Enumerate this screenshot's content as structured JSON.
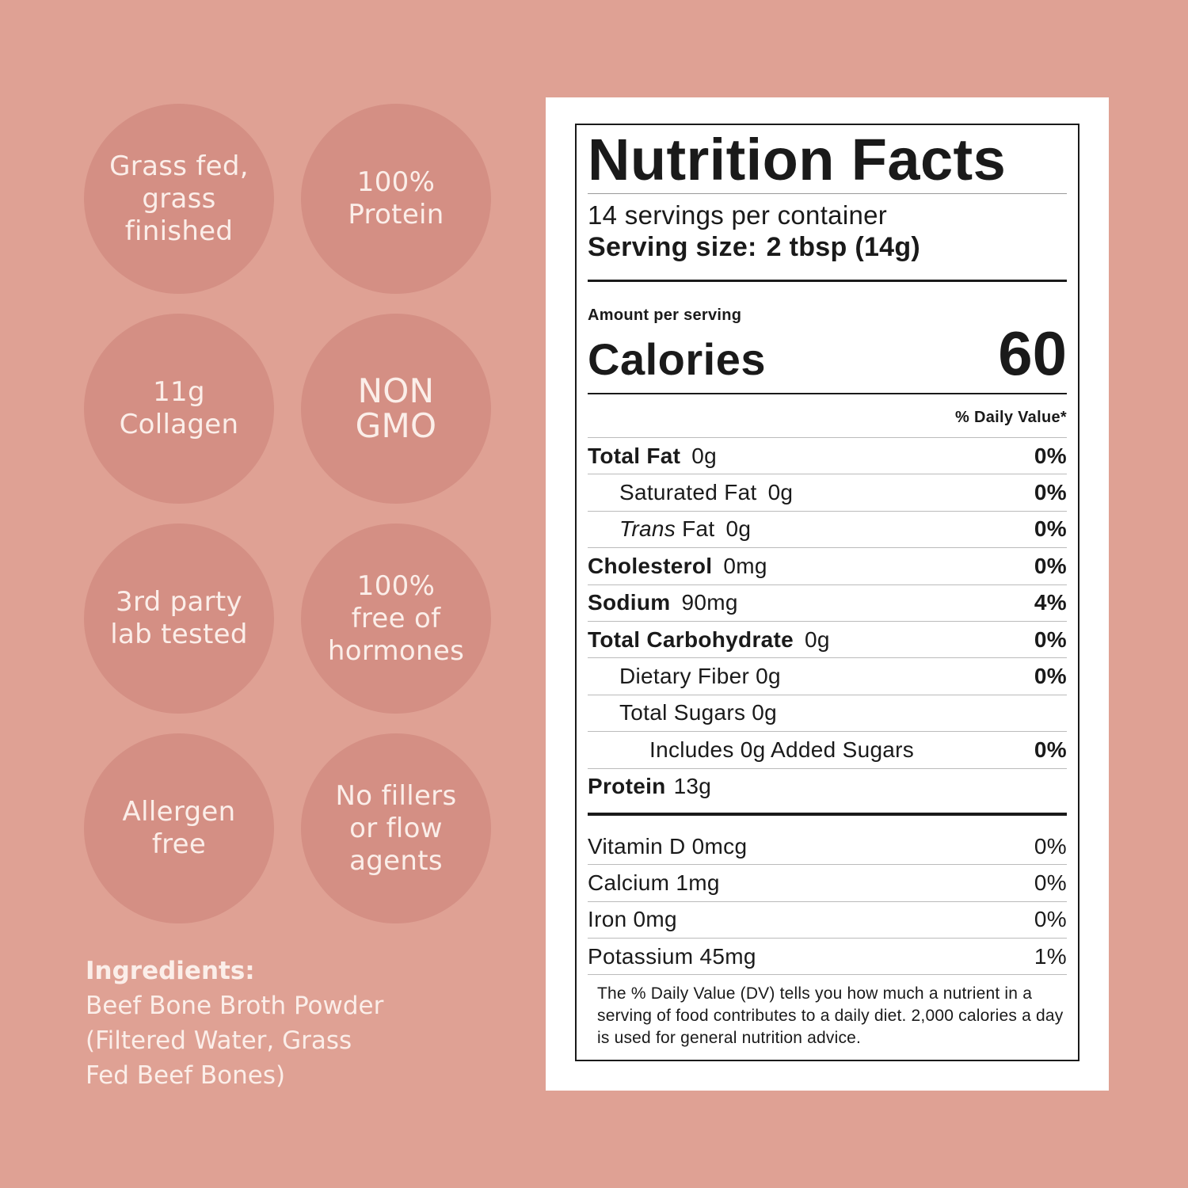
{
  "badges": [
    {
      "label": "Grass fed,\ngrass\nfinished"
    },
    {
      "label": "100%\nProtein"
    },
    {
      "label": "11g\nCollagen"
    },
    {
      "label": "NON\nGMO"
    },
    {
      "label": "3rd party\nlab tested"
    },
    {
      "label": "100%\nfree of\nhormones"
    },
    {
      "label": "Allergen\nfree"
    },
    {
      "label": "No fillers\nor flow\nagents"
    }
  ],
  "ingredients": {
    "title": "Ingredients:",
    "text": "Beef Bone Broth Powder\n(Filtered Water, Grass\nFed Beef Bones)"
  },
  "nutrition": {
    "title": "Nutrition Facts",
    "servings_per_container": "14 servings per container",
    "serving_size_label": "Serving size:",
    "serving_size_value": "2 tbsp (14g)",
    "amount_per_serving": "Amount per serving",
    "calories_label": "Calories",
    "calories_value": "60",
    "dv_header": "% Daily Value*",
    "rows": [
      {
        "name": "Total Fat",
        "amount": "0g",
        "pct": "0%"
      },
      {
        "name": "Saturated Fat",
        "amount": "0g",
        "pct": "0%"
      },
      {
        "name_italic": "Trans",
        "name": "Fat",
        "amount": "0g",
        "pct": "0%"
      },
      {
        "name": "Cholesterol",
        "amount": "0mg",
        "pct": "0%"
      },
      {
        "name": "Sodium",
        "amount": "90mg",
        "pct": "4%"
      },
      {
        "name": "Total Carbohydrate",
        "amount": "0g",
        "pct": "0%"
      },
      {
        "name": "Dietary Fiber",
        "amount": "0g",
        "pct": "0%"
      },
      {
        "name": "Total Sugars",
        "amount": "0g",
        "pct": ""
      },
      {
        "name": "Includes 0g Added Sugars",
        "amount": "",
        "pct": "0%"
      },
      {
        "name": "Protein",
        "amount": "13g",
        "pct": ""
      }
    ],
    "vitamins": [
      {
        "name": "Vitamin D",
        "amount": "0mcg",
        "pct": "0%"
      },
      {
        "name": "Calcium",
        "amount": "1mg",
        "pct": "0%"
      },
      {
        "name": "Iron",
        "amount": "0mg",
        "pct": "0%"
      },
      {
        "name": "Potassium",
        "amount": "45mg",
        "pct": "1%"
      }
    ],
    "footnote": "The % Daily Value (DV) tells you how much a nutrient in a serving of food contributes to a daily diet. 2,000 calories a day is used for general nutrition advice."
  },
  "colors": {
    "background": "#dfa194",
    "badge": "#d48f84",
    "badge_text": "#fbeee9"
  }
}
